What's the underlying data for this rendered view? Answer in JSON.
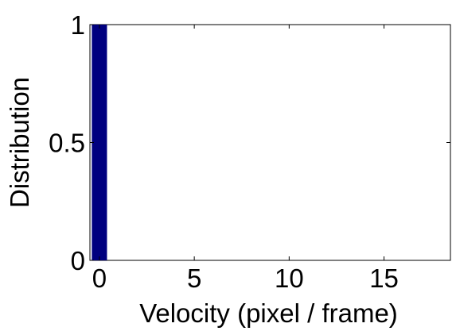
{
  "chart_data": {
    "type": "bar",
    "title": "",
    "xlabel": "Velocity (pixel / frame)",
    "ylabel": "Distribution",
    "x": [
      0,
      1,
      2,
      3,
      4,
      5,
      6,
      7,
      8,
      9,
      10,
      11,
      12,
      13,
      14,
      15,
      16,
      17,
      18
    ],
    "values": [
      1,
      0,
      0,
      0,
      0,
      0,
      0,
      0,
      0,
      0,
      0,
      0,
      0,
      0,
      0,
      0,
      0,
      0,
      0
    ],
    "xlim": [
      -0.5,
      18.5
    ],
    "ylim": [
      0,
      1
    ],
    "xticks": [
      0,
      5,
      10,
      15
    ],
    "yticks": [
      0,
      0.5,
      1
    ],
    "xtick_labels": [
      "0",
      "5",
      "10",
      "15"
    ],
    "ytick_labels": [
      "0",
      "0.5",
      "1"
    ],
    "bar_color": "#00007f",
    "grid": false,
    "legend": "none"
  }
}
